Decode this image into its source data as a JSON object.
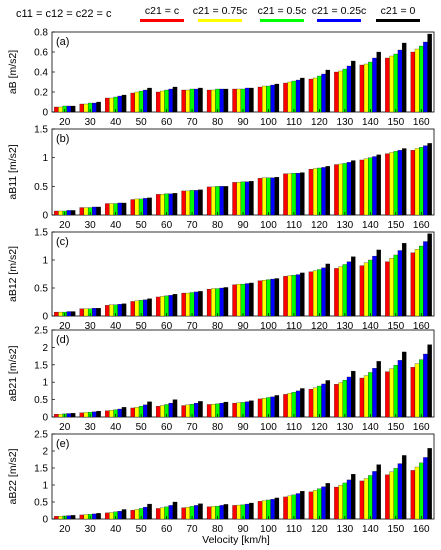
{
  "legend": {
    "prefix": "c11 = c12 = c22 = c",
    "items": [
      {
        "label": "c21 = c",
        "color": "#ff0000"
      },
      {
        "label": "c21 = 0.75c",
        "color": "#ffff00"
      },
      {
        "label": "c21 = 0.5c",
        "color": "#00ff00"
      },
      {
        "label": "c21 = 0.25c",
        "color": "#0000ff"
      },
      {
        "label": "c21 = 0",
        "color": "#000000"
      }
    ]
  },
  "xlabel": "Velocity [km/h]",
  "chart_data": [
    {
      "type": "bar",
      "panel": "(a)",
      "ylabel": "aB [m/s2]",
      "ylim": [
        0,
        0.8
      ],
      "yticks": [
        0,
        0.2,
        0.4,
        0.6,
        0.8
      ],
      "categories": [
        "20",
        "30",
        "40",
        "50",
        "60",
        "70",
        "80",
        "90",
        "100",
        "110",
        "120",
        "130",
        "140",
        "150",
        "160"
      ],
      "series": [
        {
          "name": "c21 = c",
          "values": [
            0.05,
            0.08,
            0.14,
            0.19,
            0.2,
            0.22,
            0.22,
            0.23,
            0.25,
            0.29,
            0.33,
            0.4,
            0.47,
            0.54,
            0.6
          ]
        },
        {
          "name": "c21 = 0.75c",
          "values": [
            0.05,
            0.08,
            0.14,
            0.2,
            0.21,
            0.22,
            0.22,
            0.23,
            0.26,
            0.3,
            0.34,
            0.41,
            0.48,
            0.56,
            0.63
          ]
        },
        {
          "name": "c21 = 0.5c",
          "values": [
            0.06,
            0.09,
            0.15,
            0.21,
            0.22,
            0.23,
            0.23,
            0.23,
            0.26,
            0.31,
            0.36,
            0.43,
            0.5,
            0.58,
            0.66
          ]
        },
        {
          "name": "c21 = 0.25c",
          "values": [
            0.06,
            0.09,
            0.16,
            0.22,
            0.23,
            0.23,
            0.23,
            0.24,
            0.27,
            0.32,
            0.38,
            0.46,
            0.54,
            0.62,
            0.7
          ]
        },
        {
          "name": "c21 = 0",
          "values": [
            0.06,
            0.1,
            0.17,
            0.24,
            0.25,
            0.24,
            0.23,
            0.24,
            0.28,
            0.34,
            0.42,
            0.51,
            0.6,
            0.69,
            0.78
          ]
        }
      ]
    },
    {
      "type": "bar",
      "panel": "(b)",
      "ylabel": "aB11 [m/s2]",
      "ylim": [
        0,
        1.5
      ],
      "yticks": [
        0,
        0.5,
        1,
        1.5
      ],
      "categories": [
        "20",
        "30",
        "40",
        "50",
        "60",
        "70",
        "80",
        "90",
        "100",
        "110",
        "120",
        "130",
        "140",
        "150",
        "160"
      ],
      "series": [
        {
          "name": "c21 = c",
          "values": [
            0.07,
            0.13,
            0.2,
            0.27,
            0.36,
            0.42,
            0.49,
            0.57,
            0.64,
            0.72,
            0.8,
            0.88,
            0.96,
            1.07,
            1.13
          ]
        },
        {
          "name": "c21 = 0.75c",
          "values": [
            0.07,
            0.13,
            0.2,
            0.28,
            0.36,
            0.42,
            0.49,
            0.57,
            0.65,
            0.72,
            0.81,
            0.89,
            0.98,
            1.09,
            1.16
          ]
        },
        {
          "name": "c21 = 0.5c",
          "values": [
            0.07,
            0.13,
            0.2,
            0.28,
            0.37,
            0.43,
            0.5,
            0.58,
            0.65,
            0.73,
            0.82,
            0.9,
            1.0,
            1.11,
            1.18
          ]
        },
        {
          "name": "c21 = 0.25c",
          "values": [
            0.08,
            0.14,
            0.21,
            0.29,
            0.37,
            0.43,
            0.5,
            0.58,
            0.65,
            0.73,
            0.83,
            0.92,
            1.02,
            1.13,
            1.21
          ]
        },
        {
          "name": "c21 = 0",
          "values": [
            0.08,
            0.14,
            0.21,
            0.3,
            0.38,
            0.44,
            0.5,
            0.59,
            0.66,
            0.74,
            0.85,
            0.95,
            1.05,
            1.16,
            1.25
          ]
        }
      ]
    },
    {
      "type": "bar",
      "panel": "(c)",
      "ylabel": "aB12 [m/s2]",
      "ylim": [
        0,
        1.5
      ],
      "yticks": [
        0,
        0.5,
        1,
        1.5
      ],
      "categories": [
        "20",
        "30",
        "40",
        "50",
        "60",
        "70",
        "80",
        "90",
        "100",
        "110",
        "120",
        "130",
        "140",
        "150",
        "160"
      ],
      "series": [
        {
          "name": "c21 = c",
          "values": [
            0.07,
            0.13,
            0.19,
            0.26,
            0.34,
            0.41,
            0.48,
            0.56,
            0.63,
            0.71,
            0.79,
            0.85,
            0.9,
            0.97,
            1.13
          ]
        },
        {
          "name": "c21 = 0.75c",
          "values": [
            0.07,
            0.13,
            0.2,
            0.27,
            0.35,
            0.41,
            0.49,
            0.57,
            0.64,
            0.72,
            0.81,
            0.88,
            0.95,
            1.03,
            1.19
          ]
        },
        {
          "name": "c21 = 0.5c",
          "values": [
            0.07,
            0.13,
            0.2,
            0.28,
            0.36,
            0.42,
            0.49,
            0.57,
            0.65,
            0.73,
            0.83,
            0.92,
            1.0,
            1.09,
            1.25
          ]
        },
        {
          "name": "c21 = 0.25c",
          "values": [
            0.08,
            0.14,
            0.21,
            0.29,
            0.37,
            0.43,
            0.5,
            0.58,
            0.66,
            0.74,
            0.86,
            0.97,
            1.07,
            1.17,
            1.33
          ]
        },
        {
          "name": "c21 = 0",
          "values": [
            0.08,
            0.14,
            0.22,
            0.31,
            0.39,
            0.44,
            0.51,
            0.59,
            0.67,
            0.77,
            0.93,
            1.06,
            1.18,
            1.3,
            1.47
          ]
        }
      ]
    },
    {
      "type": "bar",
      "panel": "(d)",
      "ylabel": "aB21 [m/s2]",
      "ylim": [
        0,
        2.5
      ],
      "yticks": [
        0,
        0.5,
        1,
        1.5,
        2,
        2.5
      ],
      "categories": [
        "20",
        "30",
        "40",
        "50",
        "60",
        "70",
        "80",
        "90",
        "100",
        "110",
        "120",
        "130",
        "140",
        "150",
        "160"
      ],
      "series": [
        {
          "name": "c21 = c",
          "values": [
            0.08,
            0.12,
            0.18,
            0.26,
            0.31,
            0.33,
            0.36,
            0.4,
            0.52,
            0.65,
            0.8,
            0.94,
            1.12,
            1.3,
            1.43
          ]
        },
        {
          "name": "c21 = 0.75c",
          "values": [
            0.08,
            0.13,
            0.19,
            0.28,
            0.33,
            0.35,
            0.37,
            0.41,
            0.54,
            0.68,
            0.84,
            0.99,
            1.19,
            1.39,
            1.53
          ]
        },
        {
          "name": "c21 = 0.5c",
          "values": [
            0.09,
            0.14,
            0.21,
            0.31,
            0.36,
            0.37,
            0.38,
            0.42,
            0.56,
            0.71,
            0.89,
            1.06,
            1.28,
            1.49,
            1.65
          ]
        },
        {
          "name": "c21 = 0.25c",
          "values": [
            0.1,
            0.15,
            0.23,
            0.35,
            0.4,
            0.4,
            0.4,
            0.44,
            0.58,
            0.75,
            0.95,
            1.15,
            1.4,
            1.63,
            1.81
          ]
        },
        {
          "name": "c21 = 0",
          "values": [
            0.11,
            0.17,
            0.28,
            0.44,
            0.5,
            0.45,
            0.43,
            0.47,
            0.62,
            0.82,
            1.05,
            1.32,
            1.6,
            1.87,
            2.08
          ]
        }
      ]
    },
    {
      "type": "bar",
      "panel": "(e)",
      "ylabel": "aB22 [m/s2]",
      "ylim": [
        0,
        2.5
      ],
      "yticks": [
        0,
        0.5,
        1,
        1.5,
        2,
        2.5
      ],
      "categories": [
        "20",
        "30",
        "40",
        "50",
        "60",
        "70",
        "80",
        "90",
        "100",
        "110",
        "120",
        "130",
        "140",
        "150",
        "160"
      ],
      "series": [
        {
          "name": "c21 = c",
          "values": [
            0.08,
            0.12,
            0.18,
            0.26,
            0.31,
            0.33,
            0.36,
            0.4,
            0.52,
            0.65,
            0.8,
            0.94,
            1.12,
            1.3,
            1.43
          ]
        },
        {
          "name": "c21 = 0.75c",
          "values": [
            0.08,
            0.13,
            0.19,
            0.28,
            0.33,
            0.35,
            0.37,
            0.41,
            0.54,
            0.68,
            0.84,
            0.99,
            1.19,
            1.39,
            1.53
          ]
        },
        {
          "name": "c21 = 0.5c",
          "values": [
            0.09,
            0.14,
            0.21,
            0.31,
            0.36,
            0.37,
            0.38,
            0.42,
            0.56,
            0.71,
            0.89,
            1.06,
            1.28,
            1.49,
            1.65
          ]
        },
        {
          "name": "c21 = 0.25c",
          "values": [
            0.1,
            0.15,
            0.23,
            0.35,
            0.4,
            0.4,
            0.4,
            0.44,
            0.58,
            0.75,
            0.95,
            1.15,
            1.4,
            1.63,
            1.81
          ]
        },
        {
          "name": "c21 = 0",
          "values": [
            0.11,
            0.17,
            0.28,
            0.44,
            0.5,
            0.45,
            0.43,
            0.47,
            0.62,
            0.82,
            1.05,
            1.32,
            1.6,
            1.87,
            2.08
          ]
        }
      ]
    }
  ]
}
